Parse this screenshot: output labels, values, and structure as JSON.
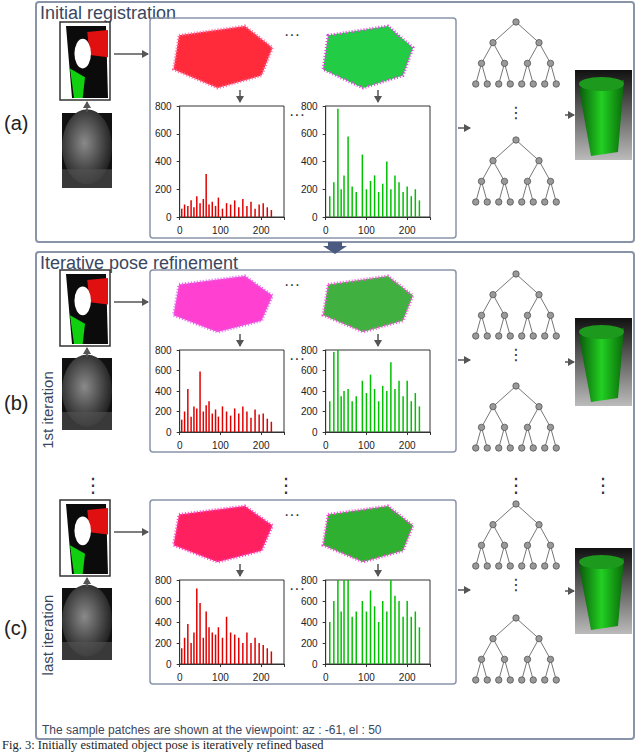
{
  "sections": [
    {
      "title": "Initial registration",
      "rows": [
        {
          "label": "(a)"
        }
      ]
    },
    {
      "title": "Iterative pose refinement",
      "rows": [
        {
          "label": "(b)",
          "side_label": "1st iteration"
        },
        {
          "label": "(c)",
          "side_label": "last iteration"
        }
      ]
    }
  ],
  "ellipsis": "···",
  "vertical_ellipsis": "⋮",
  "footer": "The sample patches are shown at the viewpoint: az : -61, el : 50",
  "caption": "Fig. 3: Initially estimated object pose is iteratively refined based",
  "chart_data": [
    {
      "type": "bar",
      "color": "#e00000",
      "xlim": [
        0,
        256
      ],
      "xticks": [
        0,
        100,
        200
      ],
      "ylim": [
        0,
        800
      ],
      "yticks": [
        0,
        200,
        400,
        600,
        800
      ],
      "x": [
        5,
        12,
        20,
        28,
        35,
        42,
        50,
        58,
        65,
        72,
        80,
        88,
        95,
        105,
        115,
        125,
        135,
        145,
        155,
        165,
        175,
        185,
        195,
        205,
        215,
        225
      ],
      "values": [
        60,
        90,
        80,
        120,
        70,
        150,
        100,
        130,
        310,
        90,
        110,
        80,
        140,
        60,
        100,
        90,
        120,
        70,
        130,
        80,
        110,
        60,
        90,
        100,
        70,
        50
      ]
    },
    {
      "type": "bar",
      "color": "#00c000",
      "xlim": [
        0,
        256
      ],
      "xticks": [
        0,
        100,
        200
      ],
      "ylim": [
        0,
        800
      ],
      "yticks": [
        0,
        200,
        400,
        600,
        800
      ],
      "x": [
        10,
        20,
        30,
        38,
        45,
        55,
        65,
        75,
        90,
        100,
        110,
        120,
        130,
        140,
        150,
        160,
        170,
        180,
        190,
        200,
        210,
        220,
        230
      ],
      "values": [
        150,
        250,
        780,
        200,
        300,
        580,
        220,
        180,
        450,
        200,
        260,
        300,
        180,
        240,
        400,
        200,
        300,
        250,
        180,
        220,
        150,
        200,
        120
      ]
    },
    {
      "type": "bar",
      "color": "#e00000",
      "xlim": [
        0,
        256
      ],
      "xticks": [
        0,
        100,
        200
      ],
      "ylim": [
        0,
        800
      ],
      "yticks": [
        0,
        200,
        400,
        600,
        800
      ],
      "x": [
        5,
        12,
        20,
        28,
        35,
        42,
        50,
        58,
        65,
        72,
        80,
        88,
        95,
        105,
        115,
        125,
        135,
        145,
        155,
        165,
        175,
        185,
        195,
        205,
        215,
        225
      ],
      "values": [
        120,
        200,
        420,
        150,
        250,
        230,
        590,
        200,
        260,
        300,
        180,
        220,
        150,
        250,
        200,
        160,
        230,
        180,
        250,
        200,
        140,
        220,
        170,
        180,
        130,
        100
      ]
    },
    {
      "type": "bar",
      "color": "#00c000",
      "xlim": [
        0,
        256
      ],
      "xticks": [
        0,
        100,
        200
      ],
      "ylim": [
        0,
        800
      ],
      "yticks": [
        0,
        200,
        400,
        600,
        800
      ],
      "x": [
        10,
        20,
        30,
        38,
        45,
        55,
        65,
        75,
        90,
        100,
        110,
        120,
        130,
        140,
        150,
        160,
        170,
        180,
        190,
        200,
        210,
        220,
        230
      ],
      "values": [
        300,
        780,
        800,
        350,
        400,
        420,
        300,
        350,
        500,
        380,
        560,
        420,
        300,
        450,
        400,
        680,
        420,
        500,
        350,
        500,
        300,
        380,
        250
      ]
    },
    {
      "type": "bar",
      "color": "#e00000",
      "xlim": [
        0,
        256
      ],
      "xticks": [
        0,
        100,
        200
      ],
      "ylim": [
        0,
        800
      ],
      "yticks": [
        0,
        200,
        400,
        600,
        800
      ],
      "x": [
        5,
        12,
        20,
        28,
        35,
        42,
        50,
        58,
        65,
        72,
        80,
        88,
        95,
        105,
        115,
        125,
        135,
        145,
        155,
        165,
        175,
        185,
        195,
        205,
        215,
        225
      ],
      "values": [
        150,
        250,
        380,
        200,
        300,
        720,
        580,
        250,
        500,
        350,
        300,
        280,
        350,
        250,
        450,
        300,
        280,
        250,
        200,
        300,
        200,
        250,
        200,
        180,
        150,
        120
      ]
    },
    {
      "type": "bar",
      "color": "#00c000",
      "xlim": [
        0,
        256
      ],
      "xticks": [
        0,
        100,
        200
      ],
      "ylim": [
        0,
        800
      ],
      "yticks": [
        0,
        200,
        400,
        600,
        800
      ],
      "x": [
        10,
        20,
        30,
        38,
        45,
        55,
        65,
        75,
        90,
        100,
        110,
        120,
        130,
        140,
        150,
        160,
        170,
        180,
        190,
        200,
        210,
        220,
        230
      ],
      "values": [
        400,
        600,
        800,
        500,
        800,
        800,
        450,
        500,
        600,
        500,
        700,
        550,
        400,
        600,
        500,
        800,
        650,
        600,
        450,
        600,
        450,
        500,
        350
      ]
    }
  ]
}
